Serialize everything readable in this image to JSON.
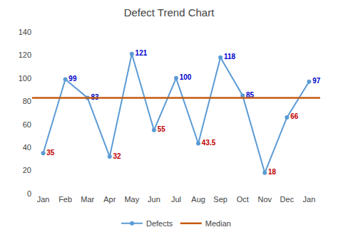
{
  "chart_data": {
    "type": "line",
    "title": "Defect Trend Chart",
    "categories": [
      "Jan",
      "Feb",
      "Mar",
      "Apr",
      "May",
      "Jun",
      "Jul",
      "Aug",
      "Sep",
      "Oct",
      "Nov",
      "Dec",
      "Jan"
    ],
    "series": [
      {
        "name": "Defects",
        "color": "#5b9bd5",
        "marker": "circle",
        "values": [
          35,
          99,
          83,
          32,
          121,
          55,
          100,
          43.5,
          118,
          85,
          18,
          66,
          97
        ]
      }
    ],
    "median": {
      "name": "Median",
      "value": 83,
      "color": "#c55a11"
    },
    "label_colors": {
      "above": "#0000cd",
      "below": "#c00000"
    },
    "ylim": [
      0,
      140
    ],
    "yticks": [
      0,
      20,
      40,
      60,
      80,
      100,
      120,
      140
    ],
    "grid": false,
    "legend": "bottom",
    "data_labels": true
  }
}
